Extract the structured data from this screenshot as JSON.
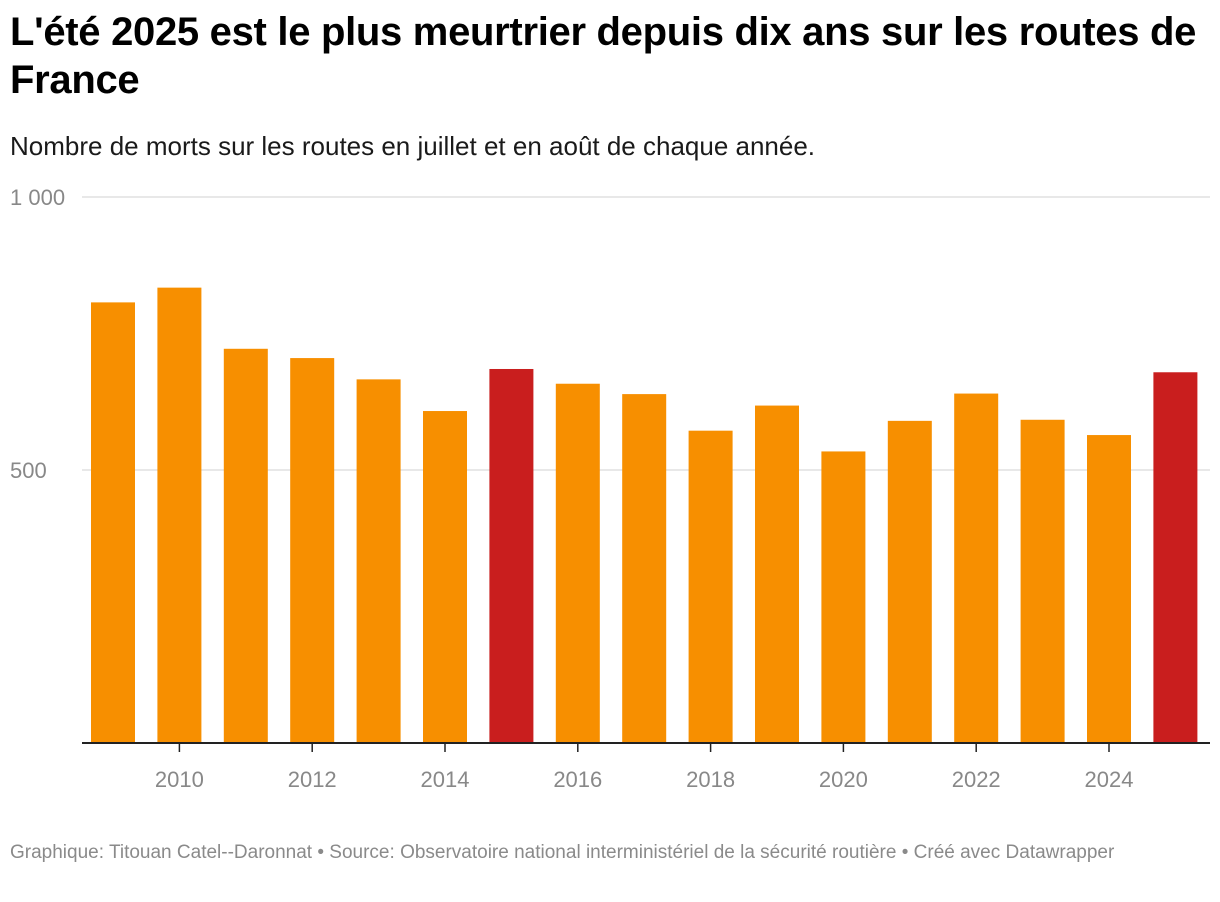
{
  "header": {
    "title": "L'été 2025 est le plus meurtrier depuis dix ans sur les routes de France",
    "subtitle": "Nombre de morts sur les routes en juillet et en août de chaque année."
  },
  "footer": {
    "credit_label": "Graphique:",
    "credit_author": "Titouan Catel--Daronnat",
    "source_label": "Source:",
    "source_name": "Observatoire national interministériel de la sécurité routière",
    "tool_label": "Créé avec",
    "tool_name": "Datawrapper",
    "separator": "•"
  },
  "colors": {
    "default_bar": "#F78F00",
    "highlight_bar": "#C91E1E",
    "gridline": "#e0e0e0",
    "baseline": "#222222"
  },
  "chart_data": {
    "type": "bar",
    "title": "L'été 2025 est le plus meurtrier depuis dix ans sur les routes de France",
    "subtitle": "Nombre de morts sur les routes en juillet et en août de chaque année.",
    "xlabel": "",
    "ylabel": "",
    "ylim": [
      0,
      1000
    ],
    "categories": [
      "2009",
      "2010",
      "2011",
      "2012",
      "2013",
      "2014",
      "2015",
      "2016",
      "2017",
      "2018",
      "2019",
      "2020",
      "2021",
      "2022",
      "2023",
      "2024",
      "2025"
    ],
    "values": [
      807,
      834,
      722,
      705,
      666,
      608,
      685,
      658,
      639,
      572,
      618,
      534,
      590,
      640,
      592,
      564,
      679
    ],
    "highlighted": [
      "2015",
      "2025"
    ],
    "x_tick_labels": [
      "2010",
      "2012",
      "2014",
      "2016",
      "2018",
      "2020",
      "2022",
      "2024"
    ],
    "y_ticks": [
      {
        "value": 500,
        "label": "500"
      },
      {
        "value": 1000,
        "label": "1 000"
      }
    ],
    "grid": true
  }
}
